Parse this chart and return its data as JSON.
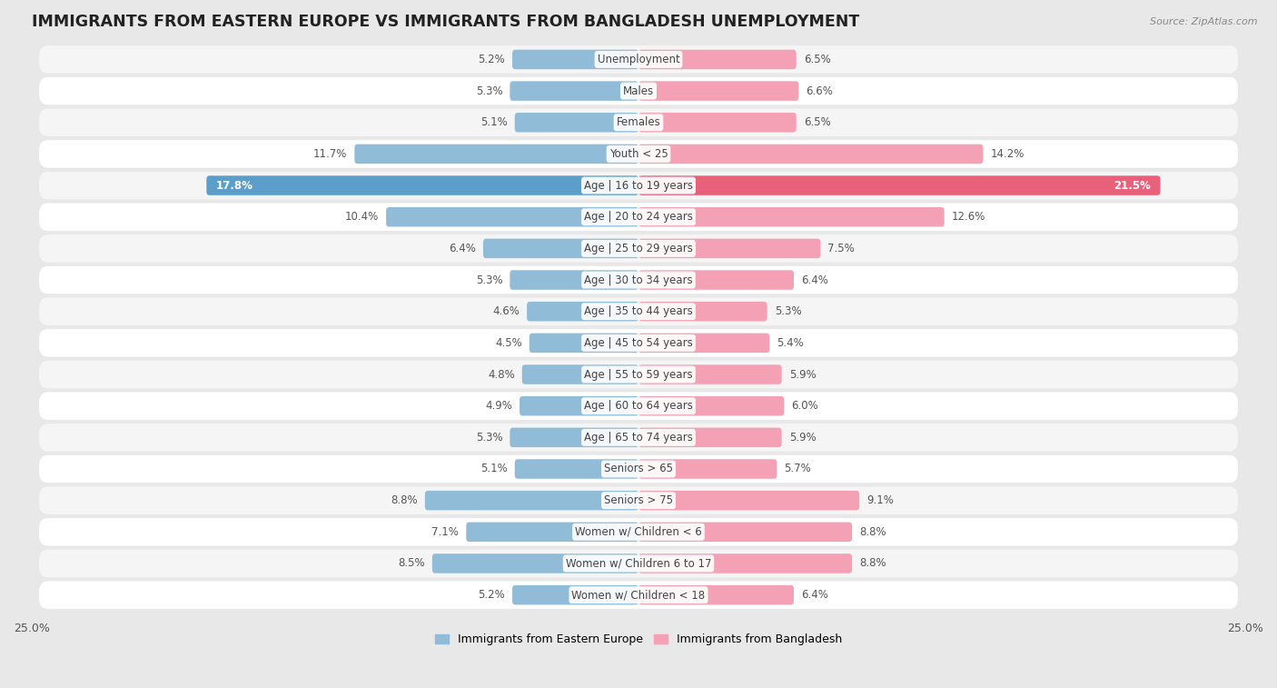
{
  "title": "IMMIGRANTS FROM EASTERN EUROPE VS IMMIGRANTS FROM BANGLADESH UNEMPLOYMENT",
  "source": "Source: ZipAtlas.com",
  "categories": [
    "Unemployment",
    "Males",
    "Females",
    "Youth < 25",
    "Age | 16 to 19 years",
    "Age | 20 to 24 years",
    "Age | 25 to 29 years",
    "Age | 30 to 34 years",
    "Age | 35 to 44 years",
    "Age | 45 to 54 years",
    "Age | 55 to 59 years",
    "Age | 60 to 64 years",
    "Age | 65 to 74 years",
    "Seniors > 65",
    "Seniors > 75",
    "Women w/ Children < 6",
    "Women w/ Children 6 to 17",
    "Women w/ Children < 18"
  ],
  "eastern_europe": [
    5.2,
    5.3,
    5.1,
    11.7,
    17.8,
    10.4,
    6.4,
    5.3,
    4.6,
    4.5,
    4.8,
    4.9,
    5.3,
    5.1,
    8.8,
    7.1,
    8.5,
    5.2
  ],
  "bangladesh": [
    6.5,
    6.6,
    6.5,
    14.2,
    21.5,
    12.6,
    7.5,
    6.4,
    5.3,
    5.4,
    5.9,
    6.0,
    5.9,
    5.7,
    9.1,
    8.8,
    8.8,
    6.4
  ],
  "color_eastern_europe": "#90bcd8",
  "color_bangladesh": "#f4a0b5",
  "color_eastern_europe_bright": "#5b9ec9",
  "color_bangladesh_bright": "#e8607a",
  "xlim": 25.0,
  "bar_height": 0.62,
  "background_color": "#e8e8e8",
  "row_color_odd": "#f5f5f5",
  "row_color_even": "#ffffff",
  "title_fontsize": 12.5,
  "label_fontsize": 8.5,
  "value_fontsize": 8.5
}
